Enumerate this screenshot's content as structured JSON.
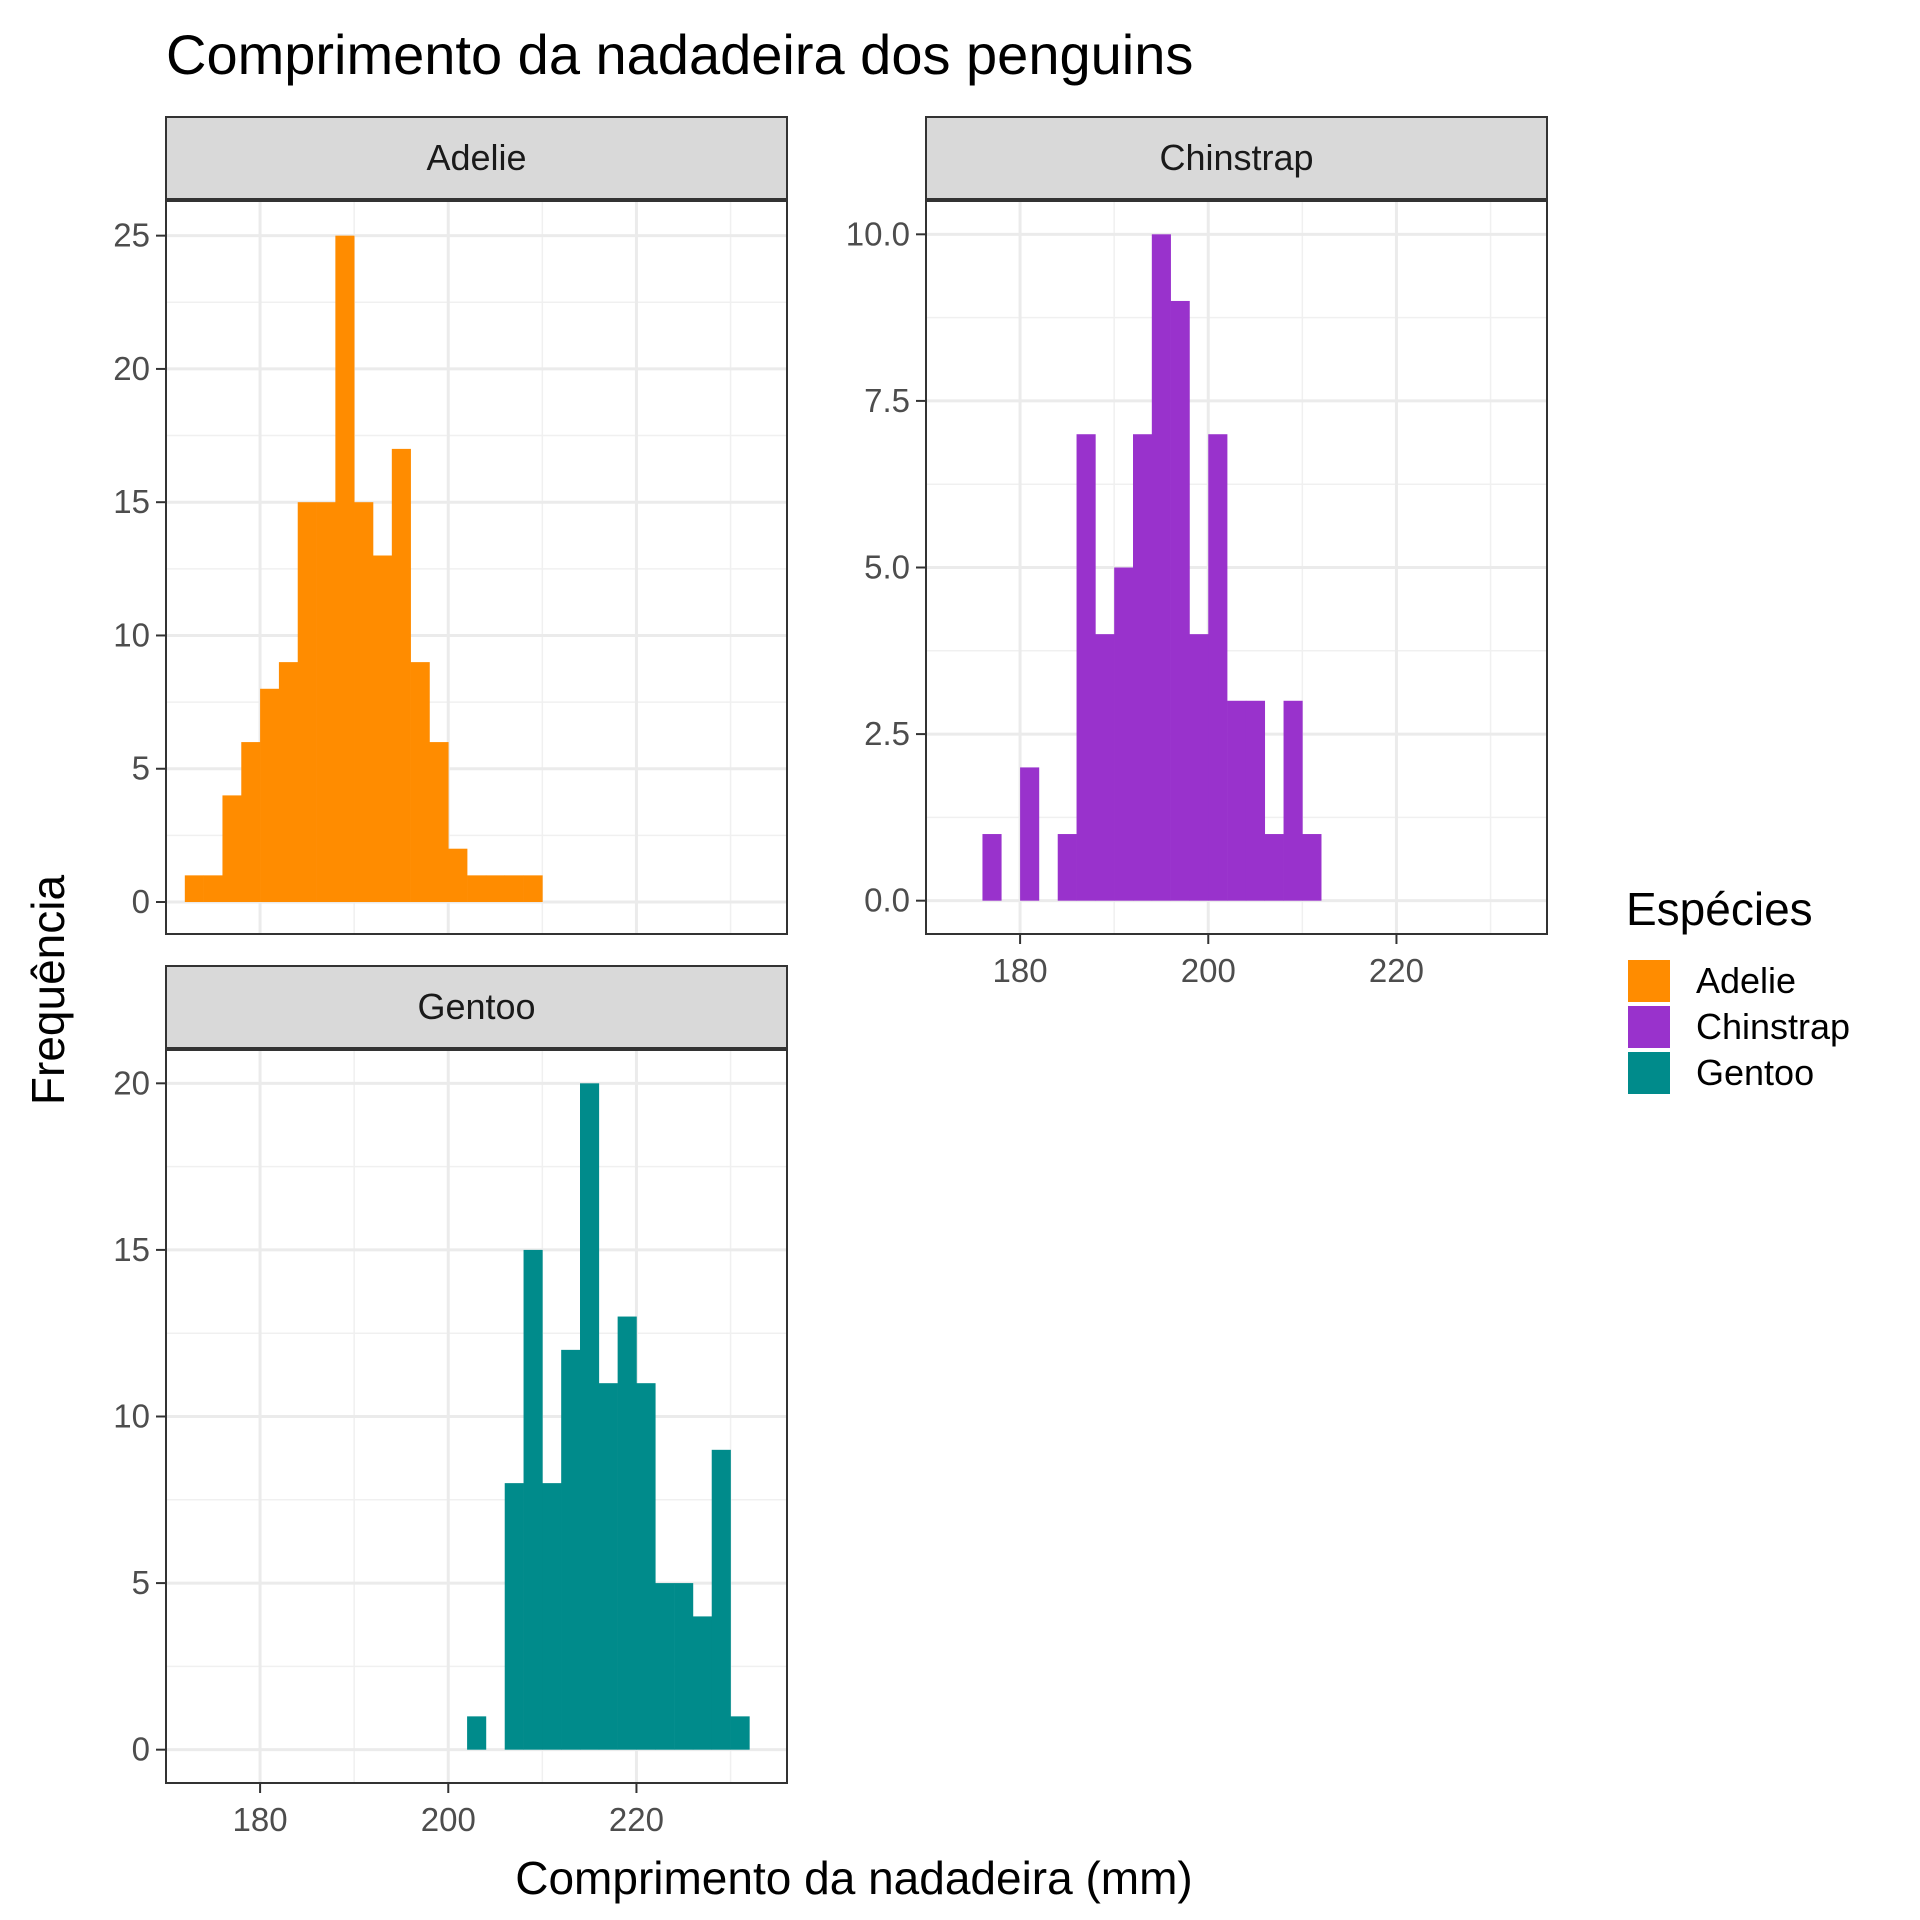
{
  "chart_data": {
    "type": "bar",
    "title": "Comprimento da nadadeira dos penguins",
    "xlabel": "Comprimento da nadadeira (mm)",
    "ylabel": "Frequência",
    "xlim": [
      170,
      236
    ],
    "x_ticks": [
      "180",
      "200",
      "220"
    ],
    "bin_width": 2,
    "legend": {
      "title": "Espécies",
      "placement": "right",
      "entries": [
        {
          "name": "Adelie",
          "color": "#FF8C00"
        },
        {
          "name": "Chinstrap",
          "color": "#9932CC"
        },
        {
          "name": "Gentoo",
          "color": "#008B8B"
        }
      ]
    },
    "panels": [
      {
        "species": "Adelie",
        "color": "#FF8C00",
        "ylim": [
          -1.2,
          26.3
        ],
        "y_ticks": [
          0,
          5,
          10,
          15,
          20,
          25
        ],
        "y_tick_labels": [
          "0",
          "5",
          "10",
          "15",
          "20",
          "25"
        ],
        "bins": [
          {
            "x": 173,
            "count": 1
          },
          {
            "x": 175,
            "count": 1
          },
          {
            "x": 177,
            "count": 4
          },
          {
            "x": 179,
            "count": 6
          },
          {
            "x": 181,
            "count": 8
          },
          {
            "x": 183,
            "count": 9
          },
          {
            "x": 185,
            "count": 15
          },
          {
            "x": 187,
            "count": 15
          },
          {
            "x": 189,
            "count": 25
          },
          {
            "x": 191,
            "count": 15
          },
          {
            "x": 193,
            "count": 13
          },
          {
            "x": 195,
            "count": 17
          },
          {
            "x": 197,
            "count": 9
          },
          {
            "x": 199,
            "count": 6
          },
          {
            "x": 201,
            "count": 2
          },
          {
            "x": 203,
            "count": 1
          },
          {
            "x": 205,
            "count": 1
          },
          {
            "x": 207,
            "count": 1
          },
          {
            "x": 209,
            "count": 1
          }
        ]
      },
      {
        "species": "Chinstrap",
        "color": "#9932CC",
        "ylim": [
          -0.5,
          10.5
        ],
        "y_ticks": [
          0,
          2.5,
          5,
          7.5,
          10
        ],
        "y_tick_labels": [
          "0.0",
          "2.5",
          "5.0",
          "7.5",
          "10.0"
        ],
        "bins": [
          {
            "x": 177,
            "count": 1
          },
          {
            "x": 181,
            "count": 2
          },
          {
            "x": 185,
            "count": 1
          },
          {
            "x": 187,
            "count": 7
          },
          {
            "x": 189,
            "count": 4
          },
          {
            "x": 191,
            "count": 5
          },
          {
            "x": 193,
            "count": 7
          },
          {
            "x": 195,
            "count": 10
          },
          {
            "x": 197,
            "count": 9
          },
          {
            "x": 199,
            "count": 4
          },
          {
            "x": 201,
            "count": 7
          },
          {
            "x": 203,
            "count": 3
          },
          {
            "x": 205,
            "count": 3
          },
          {
            "x": 207,
            "count": 1
          },
          {
            "x": 209,
            "count": 3
          },
          {
            "x": 211,
            "count": 1
          }
        ]
      },
      {
        "species": "Gentoo",
        "color": "#008B8B",
        "ylim": [
          -1,
          21
        ],
        "y_ticks": [
          0,
          5,
          10,
          15,
          20
        ],
        "y_tick_labels": [
          "0",
          "5",
          "10",
          "15",
          "20"
        ],
        "bins": [
          {
            "x": 203,
            "count": 1
          },
          {
            "x": 207,
            "count": 8
          },
          {
            "x": 209,
            "count": 15
          },
          {
            "x": 211,
            "count": 8
          },
          {
            "x": 213,
            "count": 12
          },
          {
            "x": 215,
            "count": 20
          },
          {
            "x": 217,
            "count": 11
          },
          {
            "x": 219,
            "count": 13
          },
          {
            "x": 221,
            "count": 11
          },
          {
            "x": 223,
            "count": 5
          },
          {
            "x": 225,
            "count": 5
          },
          {
            "x": 227,
            "count": 4
          },
          {
            "x": 229,
            "count": 9
          },
          {
            "x": 231,
            "count": 1
          }
        ]
      }
    ]
  }
}
